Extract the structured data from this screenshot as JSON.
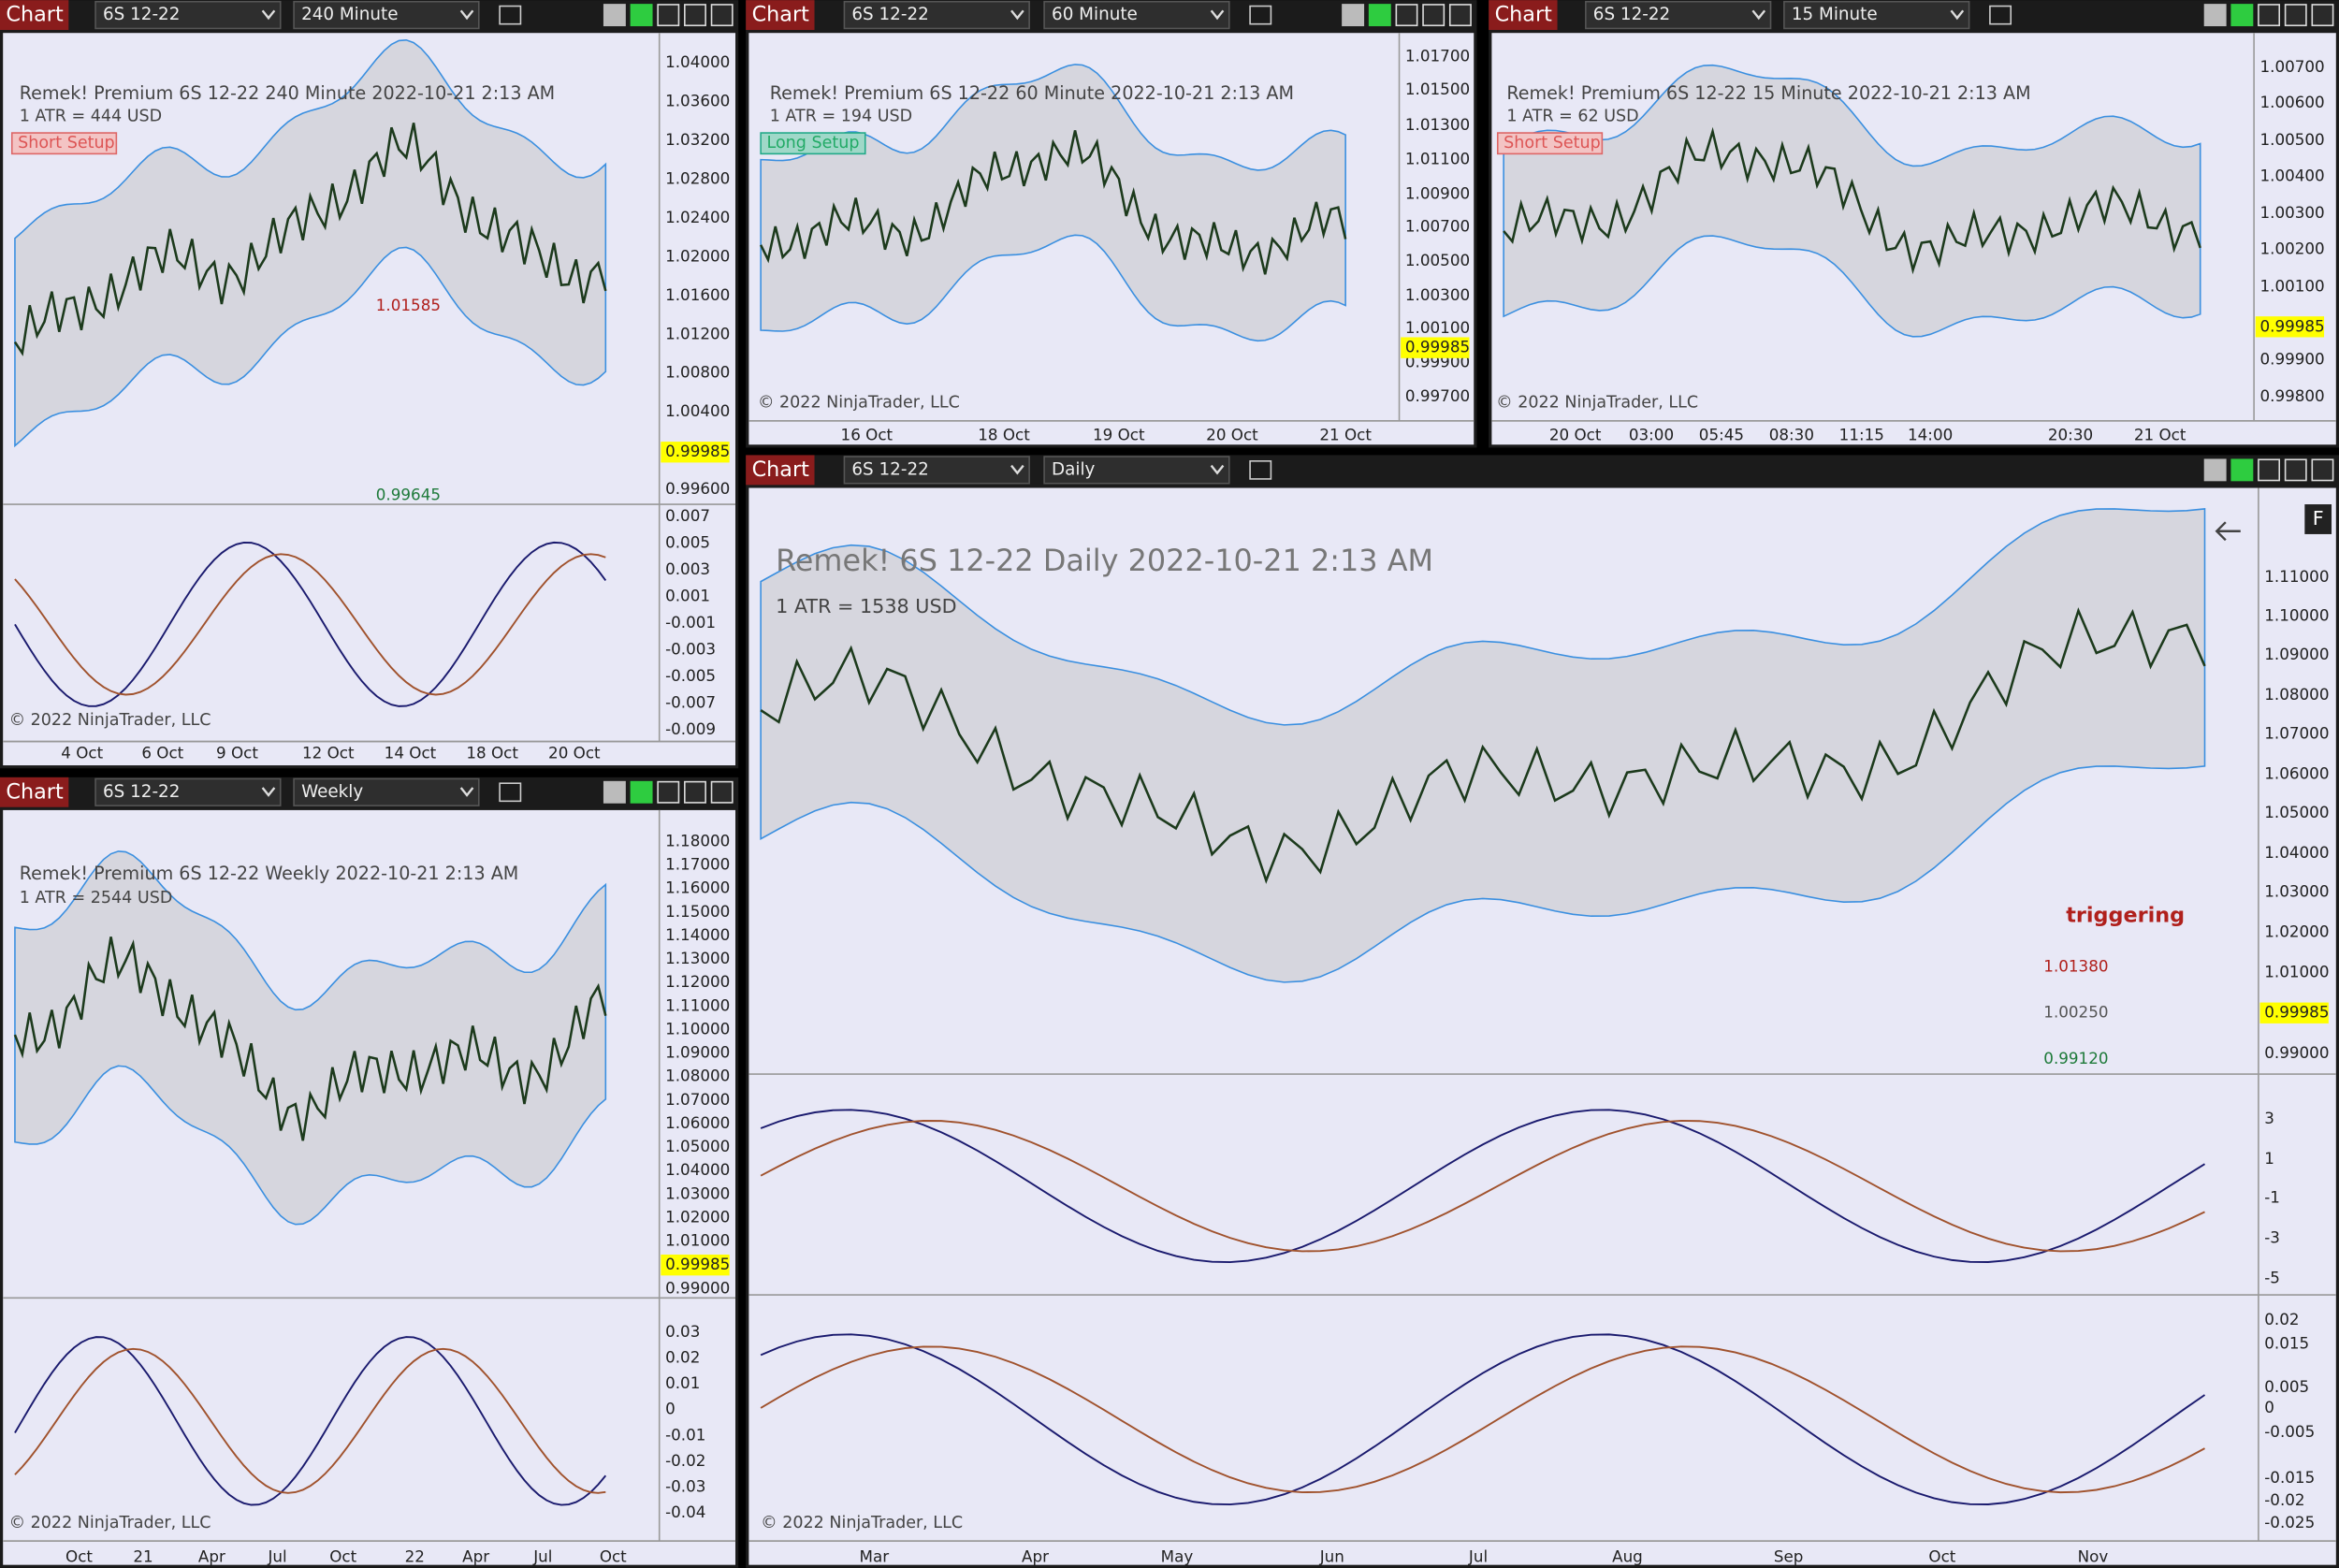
{
  "windows": [
    {
      "label": "Chart",
      "instrument": "6S 12-22",
      "timeframe": "240 Minute",
      "title": "Remek!  Premium  6S 12-22  240 Minute  2022-10-21 2:13 AM",
      "atr": "1 ATR = 444 USD",
      "setup": "Short Setup",
      "price_ticks": [
        "1.04000",
        "1.03600",
        "1.03200",
        "1.02800",
        "1.02400",
        "1.02000",
        "1.01600",
        "1.01200",
        "1.00800",
        "1.00400",
        "0.99600"
      ],
      "last_price": "0.99985",
      "oscillator_ticks": [
        "0.007",
        "0.005",
        "0.003",
        "0.001",
        "-0.001",
        "-0.003",
        "-0.005",
        "-0.007",
        "-0.009"
      ],
      "time_labels": [
        "4 Oct",
        "6 Oct",
        "9 Oct",
        "12 Oct",
        "14 Oct",
        "18 Oct",
        "20 Oct"
      ],
      "annotations": [
        "1.01585",
        "0.99645"
      ],
      "copyright": "© 2022 NinjaTrader, LLC"
    },
    {
      "label": "Chart",
      "instrument": "6S 12-22",
      "timeframe": "60 Minute",
      "title": "Remek!  Premium  6S 12-22  60 Minute  2022-10-21 2:13 AM",
      "atr": "1 ATR = 194 USD",
      "setup": "Long Setup",
      "price_ticks": [
        "1.01700",
        "1.01500",
        "1.01300",
        "1.01100",
        "1.00900",
        "1.00700",
        "1.00500",
        "1.00300",
        "1.00100",
        "0.99900",
        "0.99700"
      ],
      "last_price": "0.99985",
      "time_labels": [
        "16 Oct",
        "18 Oct",
        "19 Oct",
        "20 Oct",
        "21 Oct"
      ],
      "copyright": "© 2022 NinjaTrader, LLC"
    },
    {
      "label": "Chart",
      "instrument": "6S 12-22",
      "timeframe": "15 Minute",
      "title": "Remek!  Premium  6S 12-22  15 Minute  2022-10-21 2:13 AM",
      "atr": "1 ATR = 62 USD",
      "setup": "Short Setup",
      "price_ticks": [
        "1.00700",
        "1.00600",
        "1.00500",
        "1.00400",
        "1.00300",
        "1.00200",
        "1.00100",
        "0.99900",
        "0.99800"
      ],
      "last_price": "0.99985",
      "time_labels": [
        "20 Oct",
        "03:00",
        "05:45",
        "08:30",
        "11:15",
        "14:00",
        "20:30",
        "21 Oct"
      ],
      "copyright": "© 2022 NinjaTrader, LLC"
    },
    {
      "label": "Chart",
      "instrument": "6S 12-22",
      "timeframe": "Weekly",
      "title": "Remek!  Premium  6S 12-22  Weekly  2022-10-21 2:13 AM",
      "atr": "1 ATR = 2544 USD",
      "price_ticks": [
        "1.18000",
        "1.17000",
        "1.16000",
        "1.15000",
        "1.14000",
        "1.13000",
        "1.12000",
        "1.11000",
        "1.10000",
        "1.09000",
        "1.08000",
        "1.07000",
        "1.06000",
        "1.05000",
        "1.04000",
        "1.03000",
        "1.02000",
        "1.01000",
        "0.99000"
      ],
      "last_price": "0.99985",
      "oscillator_ticks": [
        "0.03",
        "0.02",
        "0.01",
        "0",
        "-0.01",
        "-0.02",
        "-0.03",
        "-0.04"
      ],
      "time_labels": [
        "Oct",
        "21",
        "Apr",
        "Jul",
        "Oct",
        "22",
        "Apr",
        "Jul",
        "Oct"
      ],
      "copyright": "© 2022 NinjaTrader, LLC"
    },
    {
      "label": "Chart",
      "instrument": "6S 12-22",
      "timeframe": "Daily",
      "title": "Remek!  6S 12-22  Daily  2022-10-21 2:13 AM",
      "atr": "1 ATR = 1538 USD",
      "button": "F",
      "price_ticks": [
        "1.11000",
        "1.10000",
        "1.09000",
        "1.08000",
        "1.07000",
        "1.06000",
        "1.05000",
        "1.04000",
        "1.03000",
        "1.02000",
        "1.01000",
        "0.99000"
      ],
      "last_price": "0.99985",
      "macd_ticks": [
        "3",
        "1",
        "-1",
        "-3",
        "-5"
      ],
      "oscillator_ticks": [
        "0.02",
        "0.015",
        "0.005",
        "0",
        "-0.005",
        "-0.015",
        "-0.02",
        "-0.025"
      ],
      "time_labels": [
        "Mar",
        "Apr",
        "May",
        "Jun",
        "Jul",
        "Aug",
        "Sep",
        "Oct",
        "Nov"
      ],
      "annotations": [
        "triggering",
        "1.01380",
        "1.00250",
        "0.99120"
      ],
      "copyright": "© 2022 NinjaTrader, LLC"
    }
  ]
}
